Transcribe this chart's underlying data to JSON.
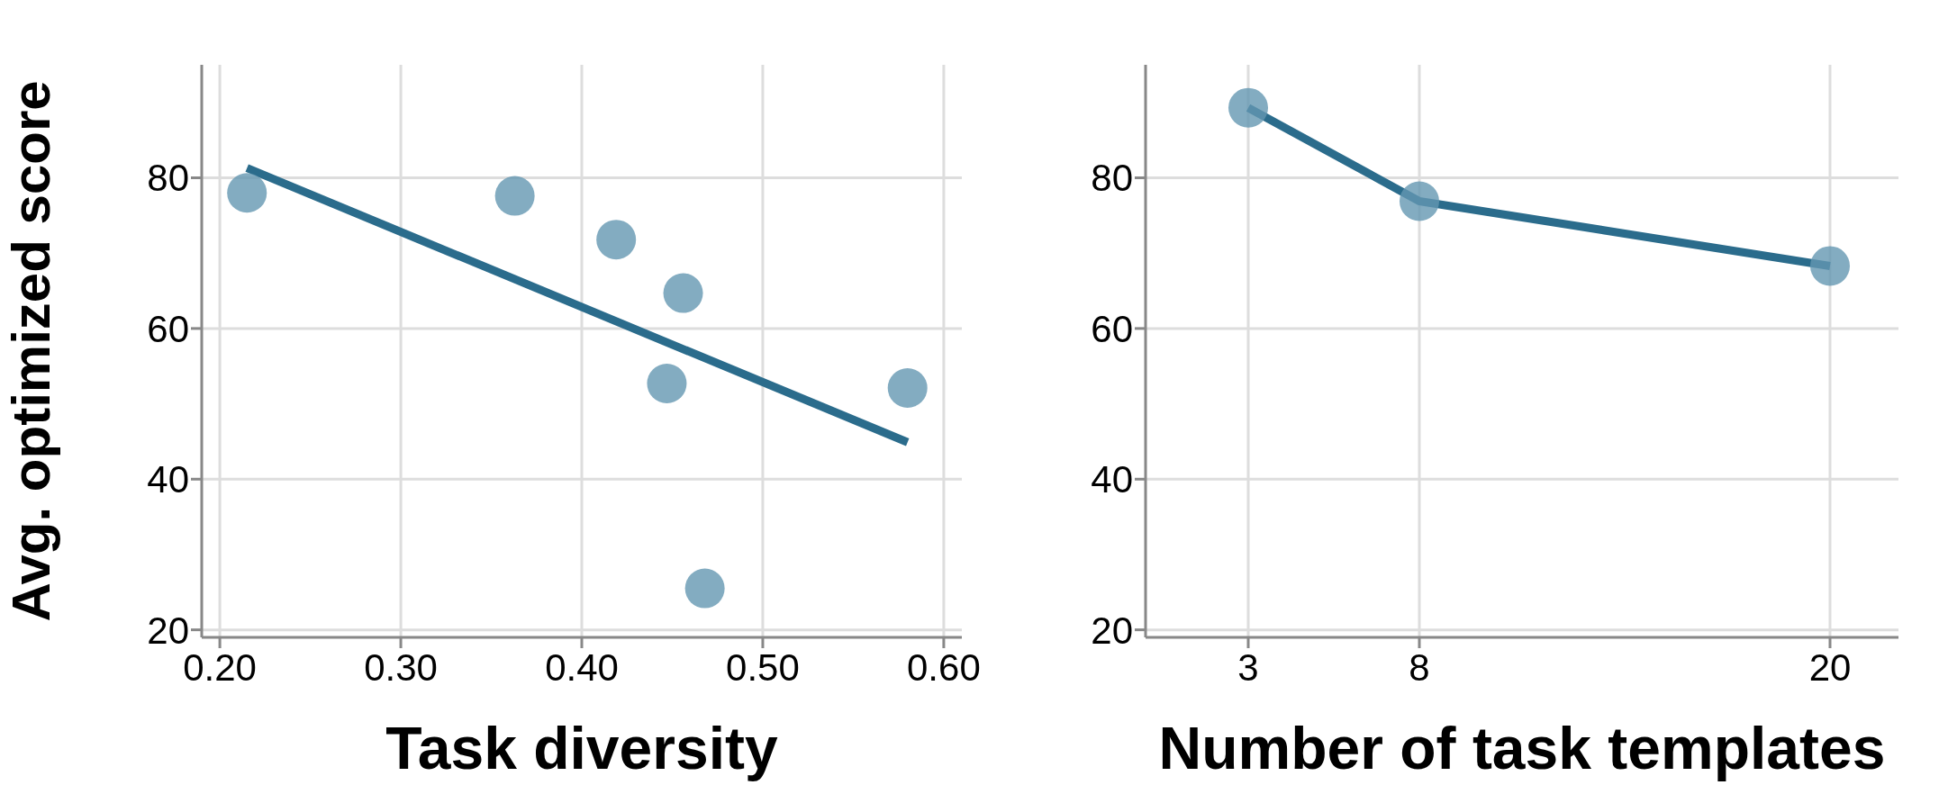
{
  "chart_data": [
    {
      "type": "scatter",
      "xlabel": "Task diversity",
      "ylabel": "Avg. optimized score",
      "xlim": [
        0.19,
        0.61
      ],
      "ylim": [
        19,
        95
      ],
      "xticks": [
        {
          "value": 0.2,
          "label": "0.20"
        },
        {
          "value": 0.3,
          "label": "0.30"
        },
        {
          "value": 0.4,
          "label": "0.40"
        },
        {
          "value": 0.5,
          "label": "0.50"
        },
        {
          "value": 0.6,
          "label": "0.60"
        }
      ],
      "yticks": [
        20,
        40,
        60,
        80
      ],
      "grid": true,
      "series": [
        {
          "marker": "circle",
          "color": "#6497b1",
          "x": [
            0.215,
            0.363,
            0.419,
            0.456,
            0.447,
            0.468,
            0.58
          ],
          "values": [
            78.0,
            77.6,
            71.8,
            64.7,
            52.7,
            25.5,
            52.1
          ]
        },
        {
          "type": "line",
          "marker": "none",
          "color": "#2b6c8c",
          "x": [
            0.215,
            0.58
          ],
          "values": [
            81.3,
            44.9
          ]
        }
      ]
    },
    {
      "type": "scatter",
      "xlabel": "Number of task templates",
      "xlim": [
        0,
        22
      ],
      "ylim": [
        19,
        95
      ],
      "xticks": [
        3,
        8,
        20
      ],
      "yticks": [
        20,
        40,
        60,
        80
      ],
      "grid": true,
      "series": [
        {
          "marker": "circle",
          "color": "#6497b1",
          "x": [
            3,
            8,
            20
          ],
          "values": [
            89.3,
            76.9,
            68.3
          ]
        },
        {
          "type": "line",
          "marker": "none",
          "color": "#2b6c8c",
          "x": [
            3,
            8,
            20
          ],
          "values": [
            89.3,
            76.9,
            68.3
          ]
        }
      ]
    }
  ]
}
